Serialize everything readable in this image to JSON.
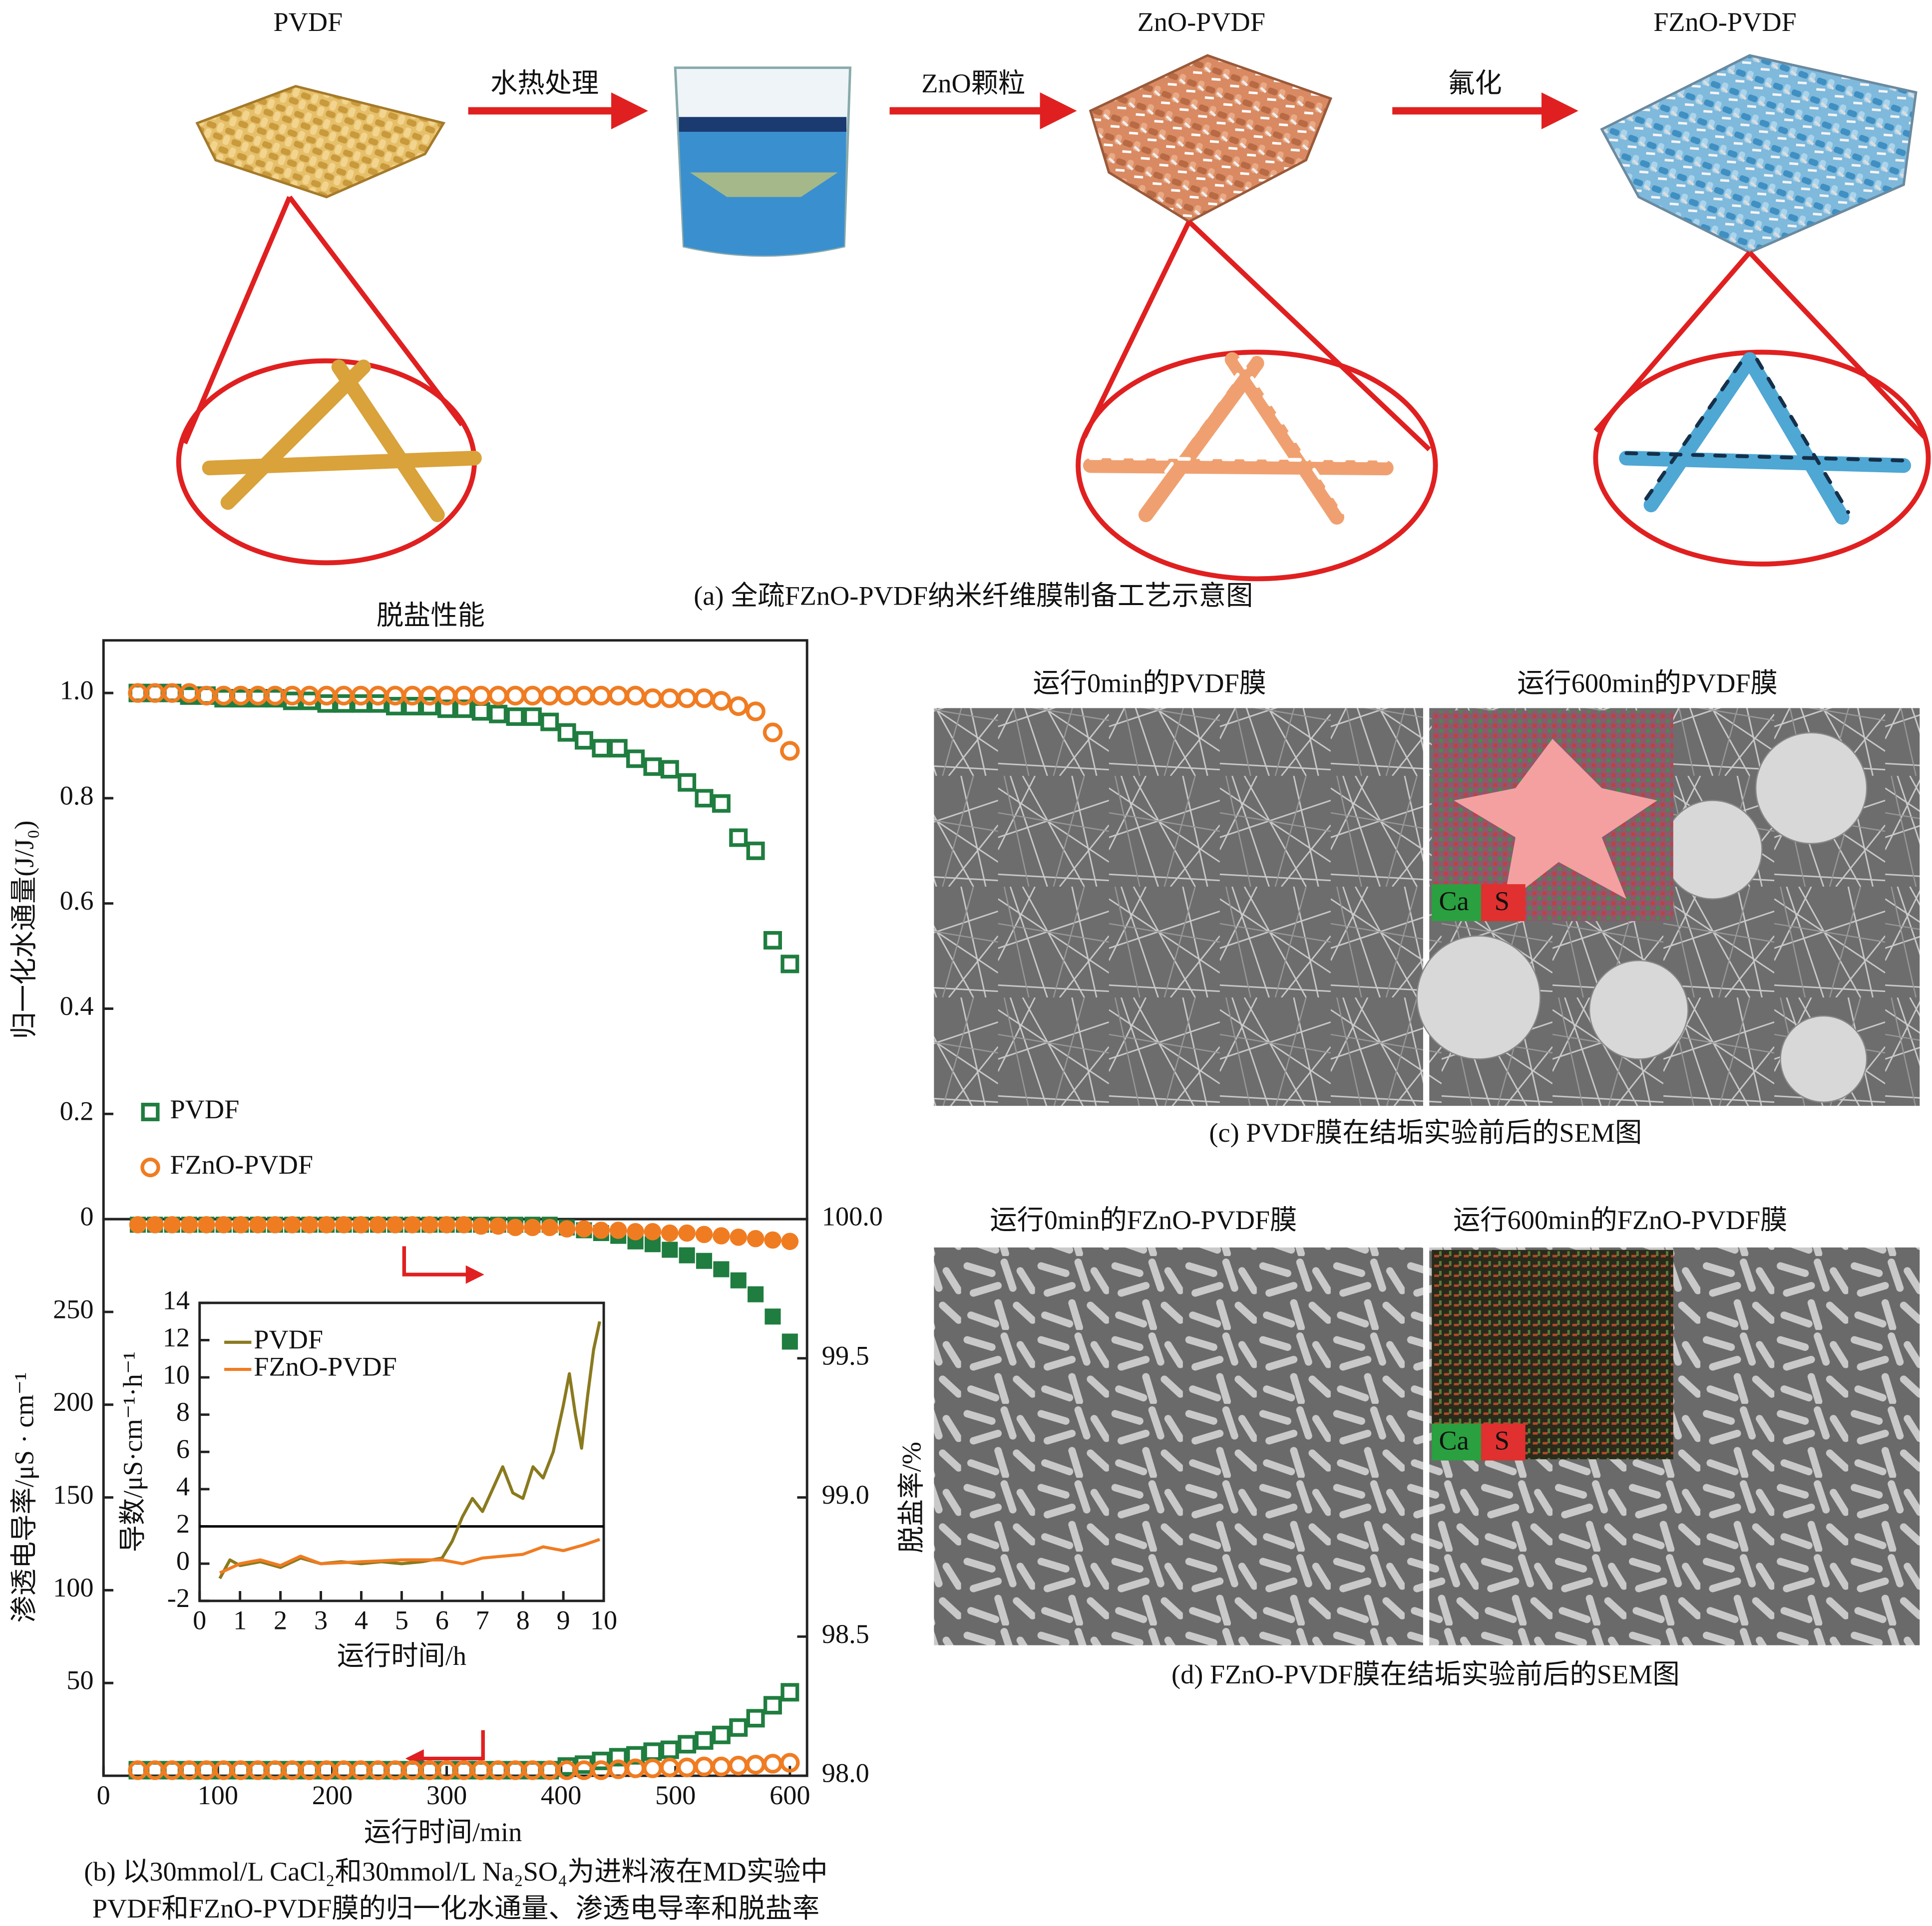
{
  "panel_a": {
    "labels": {
      "pvdf": "PVDF",
      "step1": "水热处理",
      "zno_pvdf": "ZnO-PVDF",
      "step2": "ZnO颗粒",
      "fzno_pvdf": "FZnO-PVDF",
      "step3": "氟化"
    },
    "caption": "(a) 全疏FZnO-PVDF纳米纤维膜制备工艺示意图"
  },
  "chart_data": [
    {
      "type": "scatter",
      "title": "脱盐性能",
      "ylabel": "归一化水通量(J/J₀)",
      "xlim": [
        0,
        615
      ],
      "ylim": [
        0,
        1.1
      ],
      "yticks": [
        0,
        0.2,
        0.4,
        0.6,
        0.8,
        {
          "value": 1.0,
          "label": "1.0"
        }
      ],
      "legend": "lower left",
      "x": [
        30,
        45,
        60,
        75,
        90,
        105,
        120,
        135,
        150,
        165,
        180,
        195,
        210,
        225,
        240,
        255,
        270,
        285,
        300,
        315,
        330,
        345,
        360,
        375,
        390,
        405,
        420,
        435,
        450,
        465,
        480,
        495,
        510,
        525,
        540,
        555,
        570,
        585,
        600
      ],
      "series": [
        {
          "name": "PVDF",
          "color": "#1f7d3f",
          "marker": "square",
          "filled": false,
          "values": [
            1.0,
            1.0,
            1.0,
            0.995,
            0.995,
            0.99,
            0.99,
            0.99,
            0.99,
            0.985,
            0.985,
            0.98,
            0.98,
            0.98,
            0.98,
            0.975,
            0.975,
            0.975,
            0.97,
            0.97,
            0.965,
            0.96,
            0.955,
            0.955,
            0.945,
            0.925,
            0.91,
            0.895,
            0.895,
            0.875,
            0.86,
            0.855,
            0.83,
            0.8,
            0.79,
            0.725,
            0.7,
            0.53,
            0.485
          ]
        },
        {
          "name": "FZnO-PVDF",
          "color": "#f07c22",
          "marker": "circle",
          "filled": false,
          "values": [
            1.0,
            1.0,
            1.0,
            1.0,
            0.995,
            0.995,
            0.995,
            0.995,
            0.995,
            0.995,
            0.995,
            0.995,
            0.995,
            0.995,
            0.995,
            0.995,
            0.995,
            0.995,
            0.995,
            0.995,
            0.995,
            0.995,
            0.995,
            0.995,
            0.995,
            0.995,
            0.995,
            0.995,
            0.995,
            0.995,
            0.99,
            0.99,
            0.99,
            0.99,
            0.985,
            0.975,
            0.965,
            0.925,
            0.89
          ]
        }
      ]
    },
    {
      "type": "scatter",
      "xlabel": "运行时间/min",
      "ylabel": "渗透电导率/μS · cm⁻¹",
      "y2label": "脱盐率/%",
      "xlim": [
        0,
        615
      ],
      "xticks": [
        0,
        100,
        200,
        300,
        400,
        500,
        600
      ],
      "ylim": [
        0,
        300
      ],
      "yticks": [
        50,
        100,
        150,
        200,
        250
      ],
      "y2lim": [
        98,
        100
      ],
      "y2ticks": [
        {
          "value": 100,
          "label": "100.0"
        },
        99.5,
        {
          "value": 99,
          "label": "99.0"
        },
        98.5,
        {
          "value": 98,
          "label": "98.0"
        }
      ],
      "x": [
        30,
        45,
        60,
        75,
        90,
        105,
        120,
        135,
        150,
        165,
        180,
        195,
        210,
        225,
        240,
        255,
        270,
        285,
        300,
        315,
        330,
        345,
        360,
        375,
        390,
        405,
        420,
        435,
        450,
        465,
        480,
        495,
        510,
        525,
        540,
        555,
        570,
        585,
        600
      ],
      "series": [
        {
          "color": "#1f7d3f",
          "marker": "square",
          "filled": false,
          "values": [
            3,
            3,
            3,
            3,
            3,
            3,
            3,
            3,
            3,
            3,
            3,
            3,
            3,
            3,
            3,
            3,
            3,
            3,
            3,
            3,
            3,
            3,
            3,
            3,
            3,
            5,
            6,
            8,
            10,
            11,
            13,
            14,
            17,
            19,
            22,
            26,
            31,
            38,
            45
          ]
        },
        {
          "color": "#f07c22",
          "marker": "circle",
          "filled": false,
          "values": [
            3,
            3,
            3,
            3,
            3,
            3,
            3,
            3,
            3,
            3,
            3,
            3,
            3,
            3,
            3,
            3,
            3,
            3,
            3,
            3,
            3,
            3,
            3,
            3,
            3,
            3,
            3,
            3,
            3.5,
            4,
            4,
            4.5,
            4.5,
            5,
            5,
            5.5,
            6,
            6.5,
            7
          ]
        },
        {
          "color": "#1f7d3f",
          "marker": "square",
          "filled": true,
          "axis": "y2",
          "values": [
            99.98,
            99.98,
            99.98,
            99.98,
            99.98,
            99.98,
            99.98,
            99.98,
            99.98,
            99.98,
            99.98,
            99.98,
            99.98,
            99.98,
            99.98,
            99.98,
            99.98,
            99.98,
            99.98,
            99.98,
            99.98,
            99.98,
            99.98,
            99.98,
            99.98,
            99.97,
            99.96,
            99.95,
            99.94,
            99.92,
            99.91,
            99.89,
            99.87,
            99.85,
            99.82,
            99.78,
            99.73,
            99.65,
            99.56
          ]
        },
        {
          "color": "#f07c22",
          "marker": "circle",
          "filled": true,
          "axis": "y2",
          "values": [
            99.98,
            99.98,
            99.98,
            99.98,
            99.98,
            99.98,
            99.98,
            99.98,
            99.98,
            99.98,
            99.98,
            99.98,
            99.98,
            99.98,
            99.98,
            99.98,
            99.98,
            99.98,
            99.98,
            99.98,
            99.975,
            99.975,
            99.97,
            99.97,
            99.97,
            99.965,
            99.965,
            99.96,
            99.96,
            99.955,
            99.955,
            99.95,
            99.95,
            99.945,
            99.94,
            99.935,
            99.93,
            99.925,
            99.92
          ]
        }
      ]
    },
    {
      "type": "line",
      "xlabel": "运行时间/h",
      "ylabel": "导数/μS·cm⁻¹·h⁻¹",
      "xlim": [
        0,
        10
      ],
      "xticks": [
        0,
        1,
        2,
        3,
        4,
        5,
        6,
        7,
        8,
        9,
        10
      ],
      "ylim": [
        -2,
        14
      ],
      "yticks": [
        -2,
        0,
        2,
        4,
        6,
        8,
        10,
        12,
        14
      ],
      "hline": 2,
      "hline_color": "#000000",
      "legend": "upper left",
      "series": [
        {
          "name": "PVDF",
          "color": "#8a7a1e",
          "x": [
            0.5,
            0.75,
            1,
            1.5,
            2,
            2.5,
            3,
            3.5,
            4,
            4.5,
            5,
            5.5,
            6,
            6.25,
            6.5,
            6.75,
            7,
            7.25,
            7.5,
            7.75,
            8,
            8.25,
            8.5,
            8.75,
            9,
            9.15,
            9.3,
            9.45,
            9.6,
            9.75,
            9.9
          ],
          "values": [
            -0.8,
            0.2,
            -0.1,
            0.1,
            -0.2,
            0.3,
            0,
            0.1,
            0,
            0.1,
            0,
            0.1,
            0.3,
            1.2,
            2.5,
            3.5,
            2.8,
            4,
            5.2,
            3.8,
            3.5,
            5.2,
            4.6,
            6,
            8.5,
            10.2,
            8,
            6.2,
            9,
            11.5,
            13
          ]
        },
        {
          "name": "FZnO-PVDF",
          "color": "#f07c22",
          "x": [
            0.5,
            1,
            1.5,
            2,
            2.5,
            3,
            4,
            5,
            6,
            6.5,
            7,
            7.5,
            8,
            8.5,
            9,
            9.5,
            9.9
          ],
          "values": [
            -0.5,
            0,
            0.2,
            -0.1,
            0.4,
            0,
            0.1,
            0.2,
            0.2,
            0,
            0.3,
            0.4,
            0.5,
            0.9,
            0.7,
            1,
            1.3
          ]
        }
      ]
    }
  ],
  "panel_b_caption": [
    "(b) 以30mmol/L CaCl₂和30mmol/L Na₂SO₄为进料液在MD实验中",
    "PVDF和FZnO-PVDF膜的归一化水通量、渗透电导率和脱盐率"
  ],
  "panel_c": {
    "left_title": "运行0min的PVDF膜",
    "right_title": "运行600min的PVDF膜",
    "eds": [
      "Ca",
      "S"
    ],
    "caption": "(c) PVDF膜在结垢实验前后的SEM图"
  },
  "panel_d": {
    "left_title": "运行0min的FZnO-PVDF膜",
    "right_title": "运行600min的FZnO-PVDF膜",
    "eds": [
      "Ca",
      "S"
    ],
    "caption": "(d) FZnO-PVDF膜在结垢实验前后的SEM图"
  }
}
